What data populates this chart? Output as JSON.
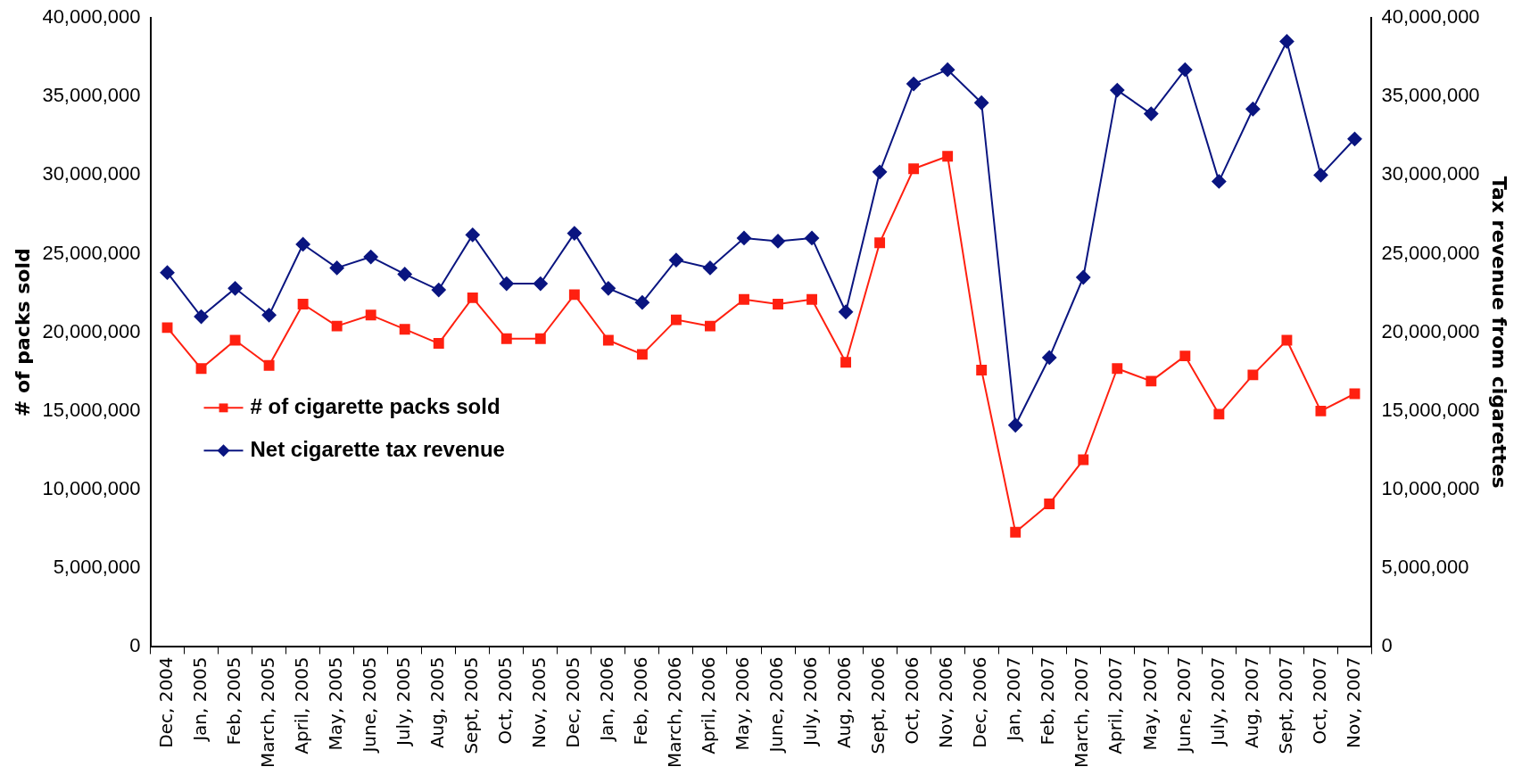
{
  "chart_data": {
    "type": "line",
    "ylabel": "# of packs sold",
    "y2label": "Tax revenue from cigarettes",
    "categories": [
      "Dec, 2004",
      "Jan, 2005",
      "Feb, 2005",
      "March, 2005",
      "April, 2005",
      "May, 2005",
      "June, 2005",
      "July, 2005",
      "Aug, 2005",
      "Sept, 2005",
      "Oct, 2005",
      "Nov, 2005",
      "Dec, 2005",
      "Jan, 2006",
      "Feb, 2006",
      "March, 2006",
      "April, 2006",
      "May, 2006",
      "June, 2006",
      "July, 2006",
      "Aug, 2006",
      "Sept, 2006",
      "Oct, 2006",
      "Nov, 2006",
      "Dec, 2006",
      "Jan, 2007",
      "Feb, 2007",
      "March, 2007",
      "April, 2007",
      "May, 2007",
      "June, 2007",
      "July, 2007",
      "Aug, 2007",
      "Sept, 2007",
      "Oct, 2007",
      "Nov, 2007"
    ],
    "series": [
      {
        "name": "# of cigarette packs sold",
        "color": "#ff2010",
        "marker": "square",
        "values": [
          20300000,
          17700000,
          19500000,
          17900000,
          21800000,
          20400000,
          21100000,
          20200000,
          19300000,
          22200000,
          19600000,
          19600000,
          22400000,
          19500000,
          18600000,
          20800000,
          20400000,
          22100000,
          21800000,
          22100000,
          18100000,
          25700000,
          30400000,
          31200000,
          17600000,
          7300000,
          9100000,
          11900000,
          17700000,
          16900000,
          18500000,
          14800000,
          17300000,
          19500000,
          15000000,
          16100000
        ]
      },
      {
        "name": "Net cigarette tax revenue",
        "color": "#0a1580",
        "marker": "diamond",
        "axis": "y2",
        "values": [
          23800000,
          21000000,
          22800000,
          21100000,
          25600000,
          24100000,
          24800000,
          23700000,
          22700000,
          26200000,
          23100000,
          23100000,
          26300000,
          22800000,
          21900000,
          24600000,
          24100000,
          26000000,
          25800000,
          26000000,
          21300000,
          30200000,
          35800000,
          36700000,
          34600000,
          14100000,
          18400000,
          23500000,
          35400000,
          33900000,
          36700000,
          29600000,
          34200000,
          38500000,
          30000000,
          32300000
        ]
      }
    ],
    "ylim": [
      0,
      40000000
    ],
    "yticks": [
      0,
      {
        "value": 5000000,
        "label": "5,000,000"
      },
      {
        "value": 10000000,
        "label": "10,000,000"
      },
      {
        "value": 15000000,
        "label": "15,000,000"
      },
      {
        "value": 20000000,
        "label": "20,000,000"
      },
      {
        "value": 25000000,
        "label": "25,000,000"
      },
      {
        "value": 30000000,
        "label": "30,000,000"
      },
      {
        "value": 35000000,
        "label": "35,000,000"
      },
      {
        "value": 40000000,
        "label": "40,000,000"
      }
    ],
    "y2lim": [
      0,
      40000000
    ],
    "y2ticks": [
      0,
      {
        "value": 5000000,
        "label": "5,000,000"
      },
      {
        "value": 10000000,
        "label": "10,000,000"
      },
      {
        "value": 15000000,
        "label": "15,000,000"
      },
      {
        "value": 20000000,
        "label": "20,000,000"
      },
      {
        "value": 25000000,
        "label": "25,000,000"
      },
      {
        "value": 30000000,
        "label": "30,000,000"
      },
      {
        "value": 35000000,
        "label": "35,000,000"
      },
      {
        "value": 40000000,
        "label": "40,000,000"
      }
    ],
    "grid": false,
    "legend": "left",
    "line_style": "solid"
  }
}
